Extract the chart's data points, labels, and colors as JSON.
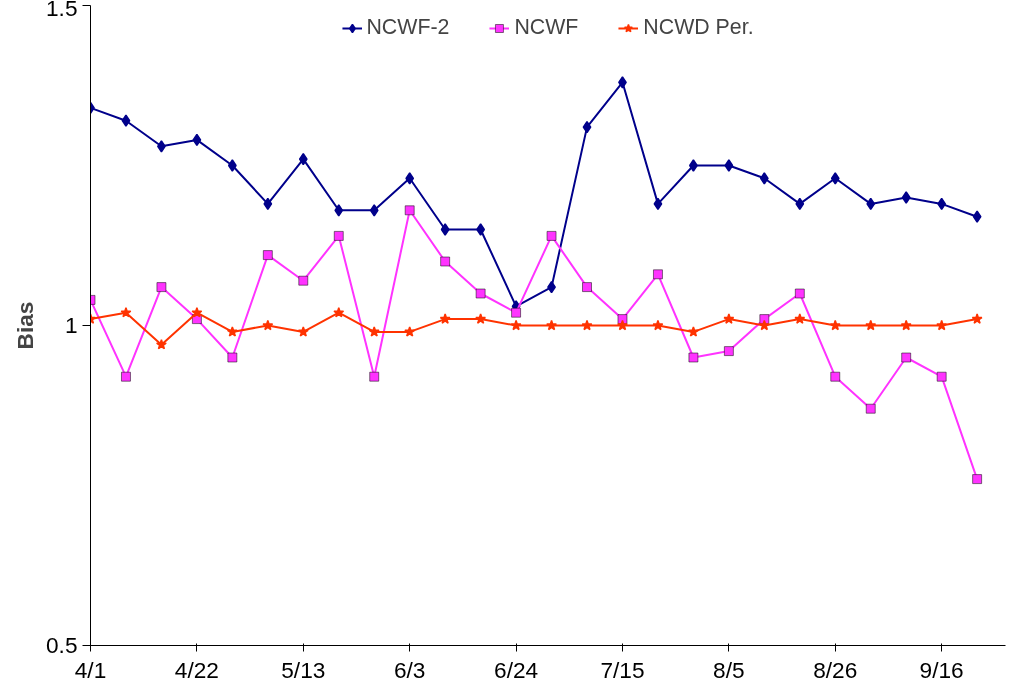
{
  "chart_data": {
    "type": "line",
    "ylabel": "Bias",
    "categories": [
      "4/1",
      null,
      null,
      "4/22",
      null,
      null,
      "5/13",
      null,
      null,
      "6/3",
      null,
      null,
      "6/24",
      null,
      null,
      "7/15",
      null,
      null,
      "8/5",
      null,
      null,
      "8/26",
      null,
      null,
      "9/16",
      null
    ],
    "series": [
      {
        "name": "NCWF-2",
        "color": "#00008b",
        "marker": "diamond",
        "values": [
          1.34,
          1.32,
          1.28,
          1.29,
          1.25,
          1.19,
          1.26,
          1.18,
          1.18,
          1.23,
          1.15,
          1.15,
          1.03,
          1.06,
          1.31,
          1.38,
          1.19,
          1.25,
          1.25,
          1.23,
          1.19,
          1.23,
          1.19,
          1.2,
          1.19,
          1.17
        ]
      },
      {
        "name": "NCWF",
        "color": "#ff33ff",
        "marker": "square",
        "values": [
          1.04,
          0.92,
          1.06,
          1.01,
          0.95,
          1.11,
          1.07,
          1.14,
          0.92,
          1.18,
          1.1,
          1.05,
          1.02,
          1.14,
          1.06,
          1.01,
          1.08,
          0.95,
          0.96,
          1.01,
          1.05,
          0.92,
          0.87,
          0.95,
          0.92,
          0.76
        ]
      },
      {
        "name": "NCWD Per.",
        "color": "#ff3300",
        "marker": "star",
        "values": [
          1.01,
          1.02,
          0.97,
          1.02,
          0.99,
          1.0,
          0.99,
          1.02,
          0.99,
          0.99,
          1.01,
          1.01,
          1.0,
          1.0,
          1.0,
          1.0,
          1.0,
          0.99,
          1.01,
          1.0,
          1.01,
          1.0,
          1.0,
          1.0,
          1.0,
          1.01
        ]
      }
    ],
    "ylim": [
      0.5,
      1.5
    ],
    "yticks": [
      0.5,
      1,
      1.5
    ],
    "grid": false,
    "legend": "top"
  }
}
